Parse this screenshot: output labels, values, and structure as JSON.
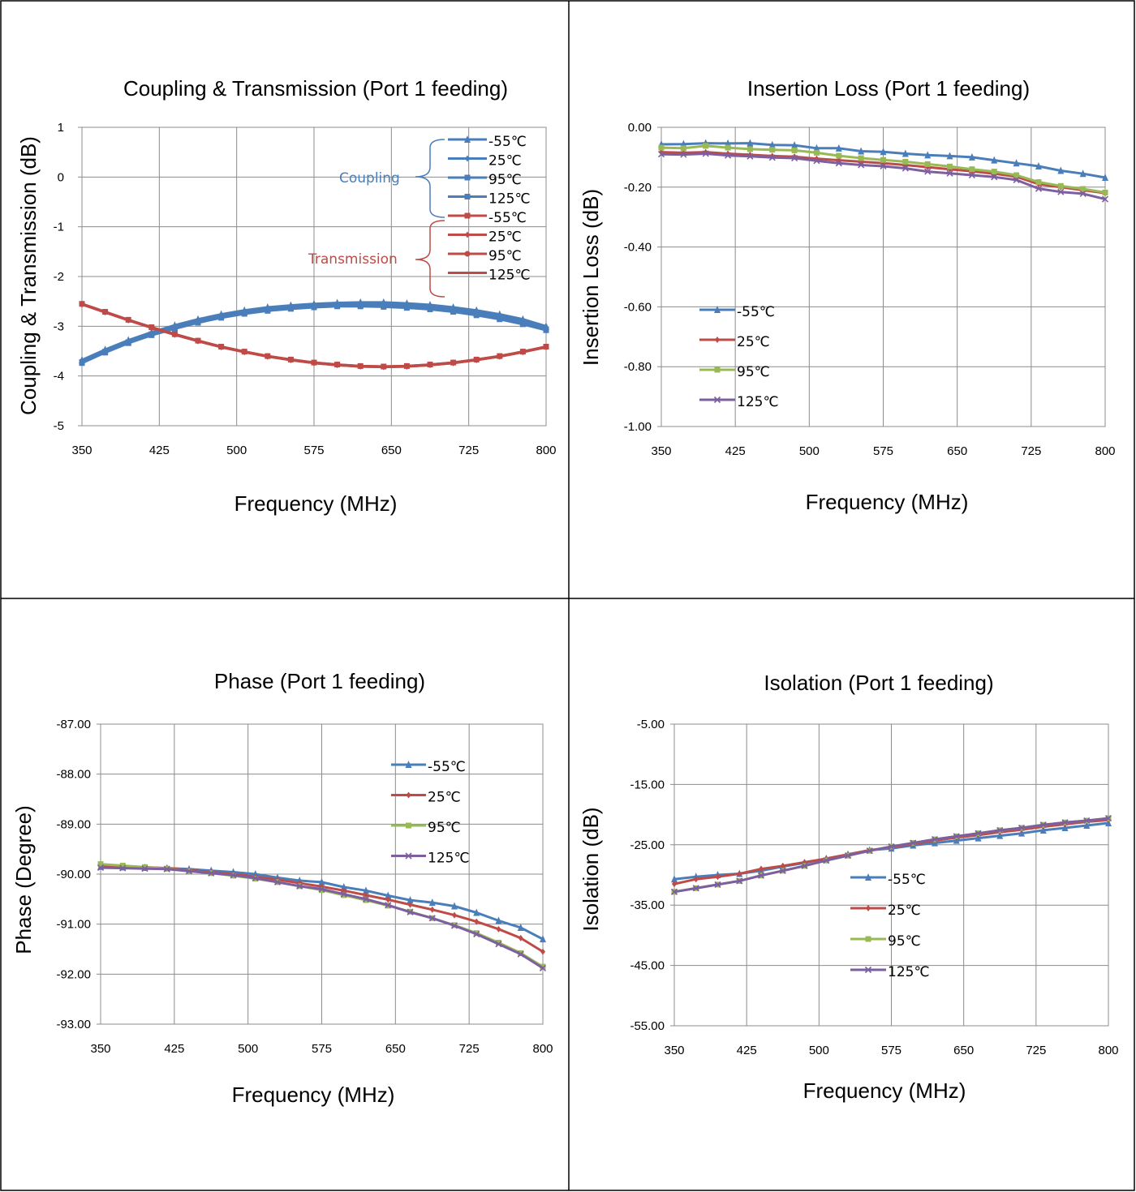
{
  "colors": {
    "neg55": "#4a7ebb",
    "c25": "#be4b48",
    "c95": "#98b954",
    "c125": "#7d5fa0",
    "coupling": "#4a7ebb",
    "transmission": "#be4b48"
  },
  "chart_data": [
    {
      "type": "line",
      "title": "Coupling & Transmission (Port 1 feeding)",
      "xlabel": "Frequency (MHz)",
      "ylabel": "Coupling & Transmission (dB)",
      "xlim": [
        350,
        800
      ],
      "ylim": [
        -5,
        1
      ],
      "x_ticks": [
        "350",
        "425",
        "500",
        "575",
        "650",
        "725",
        "800"
      ],
      "y_ticks": [
        "1",
        "0",
        "-1",
        "-2",
        "-3",
        "-4",
        "-5"
      ],
      "grid": true,
      "legend_position": "top-right",
      "legend_groups": [
        {
          "label": "Coupling",
          "color": "coupling",
          "entries": [
            "-55℃",
            "25℃",
            "95℃",
            "125℃"
          ]
        },
        {
          "label": "Transmission",
          "color": "transmission",
          "entries": [
            "-55℃",
            "25℃",
            "95℃",
            "125℃"
          ]
        }
      ],
      "x": [
        350,
        372.5,
        395,
        417.5,
        440,
        462.5,
        485,
        507.5,
        530,
        552.5,
        575,
        597.5,
        620,
        642.5,
        665,
        687.5,
        710,
        732.5,
        755,
        777.5,
        800
      ],
      "series": [
        {
          "name": "-55℃",
          "group": "Coupling",
          "color": "neg55",
          "marker": "triangle",
          "values": [
            -3.68,
            -3.47,
            -3.28,
            -3.12,
            -2.98,
            -2.86,
            -2.76,
            -2.68,
            -2.62,
            -2.58,
            -2.55,
            -2.53,
            -2.52,
            -2.52,
            -2.54,
            -2.57,
            -2.62,
            -2.68,
            -2.76,
            -2.86,
            -3.0
          ]
        },
        {
          "name": "25℃",
          "group": "Coupling",
          "color": "neg55",
          "marker": "diamond",
          "values": [
            -3.7,
            -3.49,
            -3.3,
            -3.14,
            -3.0,
            -2.88,
            -2.78,
            -2.7,
            -2.64,
            -2.6,
            -2.57,
            -2.55,
            -2.54,
            -2.55,
            -2.57,
            -2.6,
            -2.65,
            -2.72,
            -2.8,
            -2.9,
            -3.03
          ]
        },
        {
          "name": "95℃",
          "group": "Coupling",
          "color": "neg55",
          "marker": "square",
          "values": [
            -3.72,
            -3.51,
            -3.32,
            -3.16,
            -3.03,
            -2.91,
            -2.81,
            -2.73,
            -2.67,
            -2.63,
            -2.6,
            -2.58,
            -2.58,
            -2.59,
            -2.61,
            -2.64,
            -2.69,
            -2.76,
            -2.84,
            -2.94,
            -3.06
          ]
        },
        {
          "name": "125℃",
          "group": "Coupling",
          "color": "neg55",
          "marker": "square",
          "values": [
            -3.74,
            -3.53,
            -3.34,
            -3.18,
            -3.05,
            -2.93,
            -2.83,
            -2.75,
            -2.69,
            -2.65,
            -2.62,
            -2.6,
            -2.6,
            -2.61,
            -2.63,
            -2.66,
            -2.71,
            -2.78,
            -2.86,
            -2.96,
            -3.08
          ]
        },
        {
          "name": "-55℃",
          "group": "Transmission",
          "color": "transmission",
          "marker": "square",
          "values": [
            -2.55,
            -2.71,
            -2.87,
            -3.02,
            -3.16,
            -3.29,
            -3.41,
            -3.51,
            -3.6,
            -3.67,
            -3.73,
            -3.77,
            -3.8,
            -3.81,
            -3.8,
            -3.77,
            -3.73,
            -3.67,
            -3.6,
            -3.51,
            -3.41
          ]
        },
        {
          "name": "25℃",
          "group": "Transmission",
          "color": "transmission",
          "marker": "diamond",
          "values": [
            -2.56,
            -2.72,
            -2.88,
            -3.03,
            -3.17,
            -3.3,
            -3.42,
            -3.52,
            -3.61,
            -3.68,
            -3.74,
            -3.78,
            -3.81,
            -3.82,
            -3.81,
            -3.78,
            -3.74,
            -3.68,
            -3.61,
            -3.52,
            -3.42
          ]
        },
        {
          "name": "95℃",
          "group": "Transmission",
          "color": "transmission",
          "marker": "circle",
          "values": [
            -2.55,
            -2.71,
            -2.87,
            -3.02,
            -3.16,
            -3.29,
            -3.41,
            -3.51,
            -3.6,
            -3.67,
            -3.73,
            -3.77,
            -3.8,
            -3.81,
            -3.8,
            -3.77,
            -3.73,
            -3.67,
            -3.6,
            -3.51,
            -3.41
          ]
        },
        {
          "name": "125℃",
          "group": "Transmission",
          "color": "transmission",
          "marker": "none",
          "values": [
            -2.56,
            -2.72,
            -2.88,
            -3.03,
            -3.17,
            -3.3,
            -3.42,
            -3.52,
            -3.61,
            -3.68,
            -3.74,
            -3.78,
            -3.81,
            -3.82,
            -3.81,
            -3.78,
            -3.74,
            -3.68,
            -3.61,
            -3.52,
            -3.42
          ]
        }
      ]
    },
    {
      "type": "line",
      "title": "Insertion Loss (Port 1 feeding)",
      "xlabel": "Frequency (MHz)",
      "ylabel": "Insertion Loss (dB)",
      "xlim": [
        350,
        800
      ],
      "ylim": [
        -1.0,
        0.0
      ],
      "x_ticks": [
        "350",
        "425",
        "500",
        "575",
        "650",
        "725",
        "800"
      ],
      "y_ticks": [
        "0.00",
        "-0.20",
        "-0.40",
        "-0.60",
        "-0.80",
        "-1.00"
      ],
      "grid": true,
      "legend_position": "bottom-left",
      "x": [
        350,
        372.5,
        395,
        417.5,
        440,
        462.5,
        485,
        507.5,
        530,
        552.5,
        575,
        597.5,
        620,
        642.5,
        665,
        687.5,
        710,
        732.5,
        755,
        777.5,
        800
      ],
      "series": [
        {
          "name": "-55℃",
          "color": "neg55",
          "marker": "triangle",
          "values": [
            -0.057,
            -0.056,
            -0.053,
            -0.054,
            -0.053,
            -0.059,
            -0.06,
            -0.07,
            -0.07,
            -0.08,
            -0.082,
            -0.088,
            -0.093,
            -0.096,
            -0.1,
            -0.11,
            -0.12,
            -0.13,
            -0.145,
            -0.155,
            -0.168
          ]
        },
        {
          "name": "25℃",
          "color": "c25",
          "marker": "diamond",
          "values": [
            -0.083,
            -0.085,
            -0.083,
            -0.088,
            -0.092,
            -0.096,
            -0.098,
            -0.105,
            -0.11,
            -0.115,
            -0.12,
            -0.126,
            -0.133,
            -0.14,
            -0.147,
            -0.155,
            -0.165,
            -0.19,
            -0.2,
            -0.21,
            -0.22
          ]
        },
        {
          "name": "95℃",
          "color": "c95",
          "marker": "square",
          "values": [
            -0.068,
            -0.07,
            -0.062,
            -0.068,
            -0.073,
            -0.075,
            -0.077,
            -0.085,
            -0.095,
            -0.103,
            -0.109,
            -0.115,
            -0.123,
            -0.131,
            -0.14,
            -0.148,
            -0.16,
            -0.183,
            -0.196,
            -0.206,
            -0.218
          ]
        },
        {
          "name": "125℃",
          "color": "c125",
          "marker": "x",
          "values": [
            -0.09,
            -0.091,
            -0.088,
            -0.094,
            -0.097,
            -0.101,
            -0.103,
            -0.112,
            -0.12,
            -0.126,
            -0.13,
            -0.137,
            -0.148,
            -0.154,
            -0.16,
            -0.166,
            -0.176,
            -0.205,
            -0.216,
            -0.222,
            -0.24
          ]
        }
      ]
    },
    {
      "type": "line",
      "title": "Phase (Port 1 feeding)",
      "xlabel": "Frequency (MHz)",
      "ylabel": "Phase (Degree)",
      "xlim": [
        350,
        800
      ],
      "ylim": [
        -93,
        -87
      ],
      "x_ticks": [
        "350",
        "425",
        "500",
        "575",
        "650",
        "725",
        "800"
      ],
      "y_ticks": [
        "-87.00",
        "-88.00",
        "-89.00",
        "-90.00",
        "-91.00",
        "-92.00",
        "-93.00"
      ],
      "grid": true,
      "legend_position": "top-right",
      "x": [
        350,
        372.5,
        395,
        417.5,
        440,
        462.5,
        485,
        507.5,
        530,
        552.5,
        575,
        597.5,
        620,
        642.5,
        665,
        687.5,
        710,
        732.5,
        755,
        777.5,
        800
      ],
      "series": [
        {
          "name": "-55℃",
          "color": "neg55",
          "marker": "triangle",
          "values": [
            -89.85,
            -89.86,
            -89.87,
            -89.88,
            -89.9,
            -89.93,
            -89.96,
            -90.0,
            -90.07,
            -90.13,
            -90.16,
            -90.26,
            -90.33,
            -90.43,
            -90.52,
            -90.57,
            -90.64,
            -90.77,
            -90.93,
            -91.07,
            -91.3
          ]
        },
        {
          "name": "25℃",
          "color": "c25",
          "marker": "diamond",
          "values": [
            -89.83,
            -89.84,
            -89.86,
            -89.88,
            -89.92,
            -89.96,
            -90.0,
            -90.05,
            -90.11,
            -90.18,
            -90.25,
            -90.33,
            -90.42,
            -90.51,
            -90.61,
            -90.71,
            -90.82,
            -90.95,
            -91.1,
            -91.28,
            -91.55
          ]
        },
        {
          "name": "95℃",
          "color": "c95",
          "marker": "square",
          "values": [
            -89.8,
            -89.83,
            -89.86,
            -89.89,
            -89.94,
            -89.98,
            -90.03,
            -90.09,
            -90.16,
            -90.24,
            -90.32,
            -90.42,
            -90.52,
            -90.63,
            -90.75,
            -90.88,
            -91.02,
            -91.18,
            -91.37,
            -91.58,
            -91.85
          ]
        },
        {
          "name": "125℃",
          "color": "c125",
          "marker": "x",
          "values": [
            -89.87,
            -89.88,
            -89.89,
            -89.9,
            -89.94,
            -89.98,
            -90.02,
            -90.08,
            -90.16,
            -90.24,
            -90.3,
            -90.4,
            -90.5,
            -90.62,
            -90.76,
            -90.88,
            -91.03,
            -91.2,
            -91.4,
            -91.6,
            -91.88
          ]
        }
      ]
    },
    {
      "type": "line",
      "title": "Isolation (Port 1 feeding)",
      "xlabel": "Frequency (MHz)",
      "ylabel": "Isolation (dB)",
      "xlim": [
        350,
        800
      ],
      "ylim": [
        -55,
        -5
      ],
      "x_ticks": [
        "350",
        "425",
        "500",
        "575",
        "650",
        "725",
        "800"
      ],
      "y_ticks": [
        "-5.00",
        "-15.00",
        "-25.00",
        "-35.00",
        "-45.00",
        "-55.00"
      ],
      "grid": true,
      "legend_position": "center-right",
      "x": [
        350,
        372.5,
        395,
        417.5,
        440,
        462.5,
        485,
        507.5,
        530,
        552.5,
        575,
        597.5,
        620,
        642.5,
        665,
        687.5,
        710,
        732.5,
        755,
        777.5,
        800
      ],
      "series": [
        {
          "name": "-55℃",
          "color": "neg55",
          "marker": "triangle",
          "values": [
            -30.7,
            -30.3,
            -30.0,
            -29.8,
            -29.3,
            -28.6,
            -28.0,
            -27.3,
            -26.6,
            -25.9,
            -25.6,
            -25.1,
            -24.7,
            -24.3,
            -23.9,
            -23.5,
            -23.1,
            -22.6,
            -22.2,
            -21.8,
            -21.4
          ]
        },
        {
          "name": "25℃",
          "color": "c25",
          "marker": "diamond",
          "values": [
            -31.5,
            -30.7,
            -30.3,
            -29.8,
            -29.0,
            -28.5,
            -27.9,
            -27.3,
            -26.6,
            -25.9,
            -25.4,
            -24.9,
            -24.3,
            -23.8,
            -23.4,
            -22.9,
            -22.5,
            -22.0,
            -21.6,
            -21.2,
            -20.9
          ]
        },
        {
          "name": "95℃",
          "color": "c95",
          "marker": "square",
          "values": [
            -32.8,
            -32.2,
            -31.6,
            -31.0,
            -30.1,
            -29.3,
            -28.5,
            -27.6,
            -26.8,
            -26.0,
            -25.3,
            -24.7,
            -24.1,
            -23.6,
            -23.1,
            -22.6,
            -22.2,
            -21.7,
            -21.3,
            -21.0,
            -20.6
          ]
        },
        {
          "name": "125℃",
          "color": "c125",
          "marker": "x",
          "values": [
            -32.8,
            -32.2,
            -31.6,
            -31.0,
            -30.1,
            -29.3,
            -28.5,
            -27.6,
            -26.8,
            -26.0,
            -25.3,
            -24.7,
            -24.1,
            -23.6,
            -23.1,
            -22.6,
            -22.2,
            -21.7,
            -21.3,
            -21.0,
            -20.6
          ]
        }
      ]
    }
  ]
}
